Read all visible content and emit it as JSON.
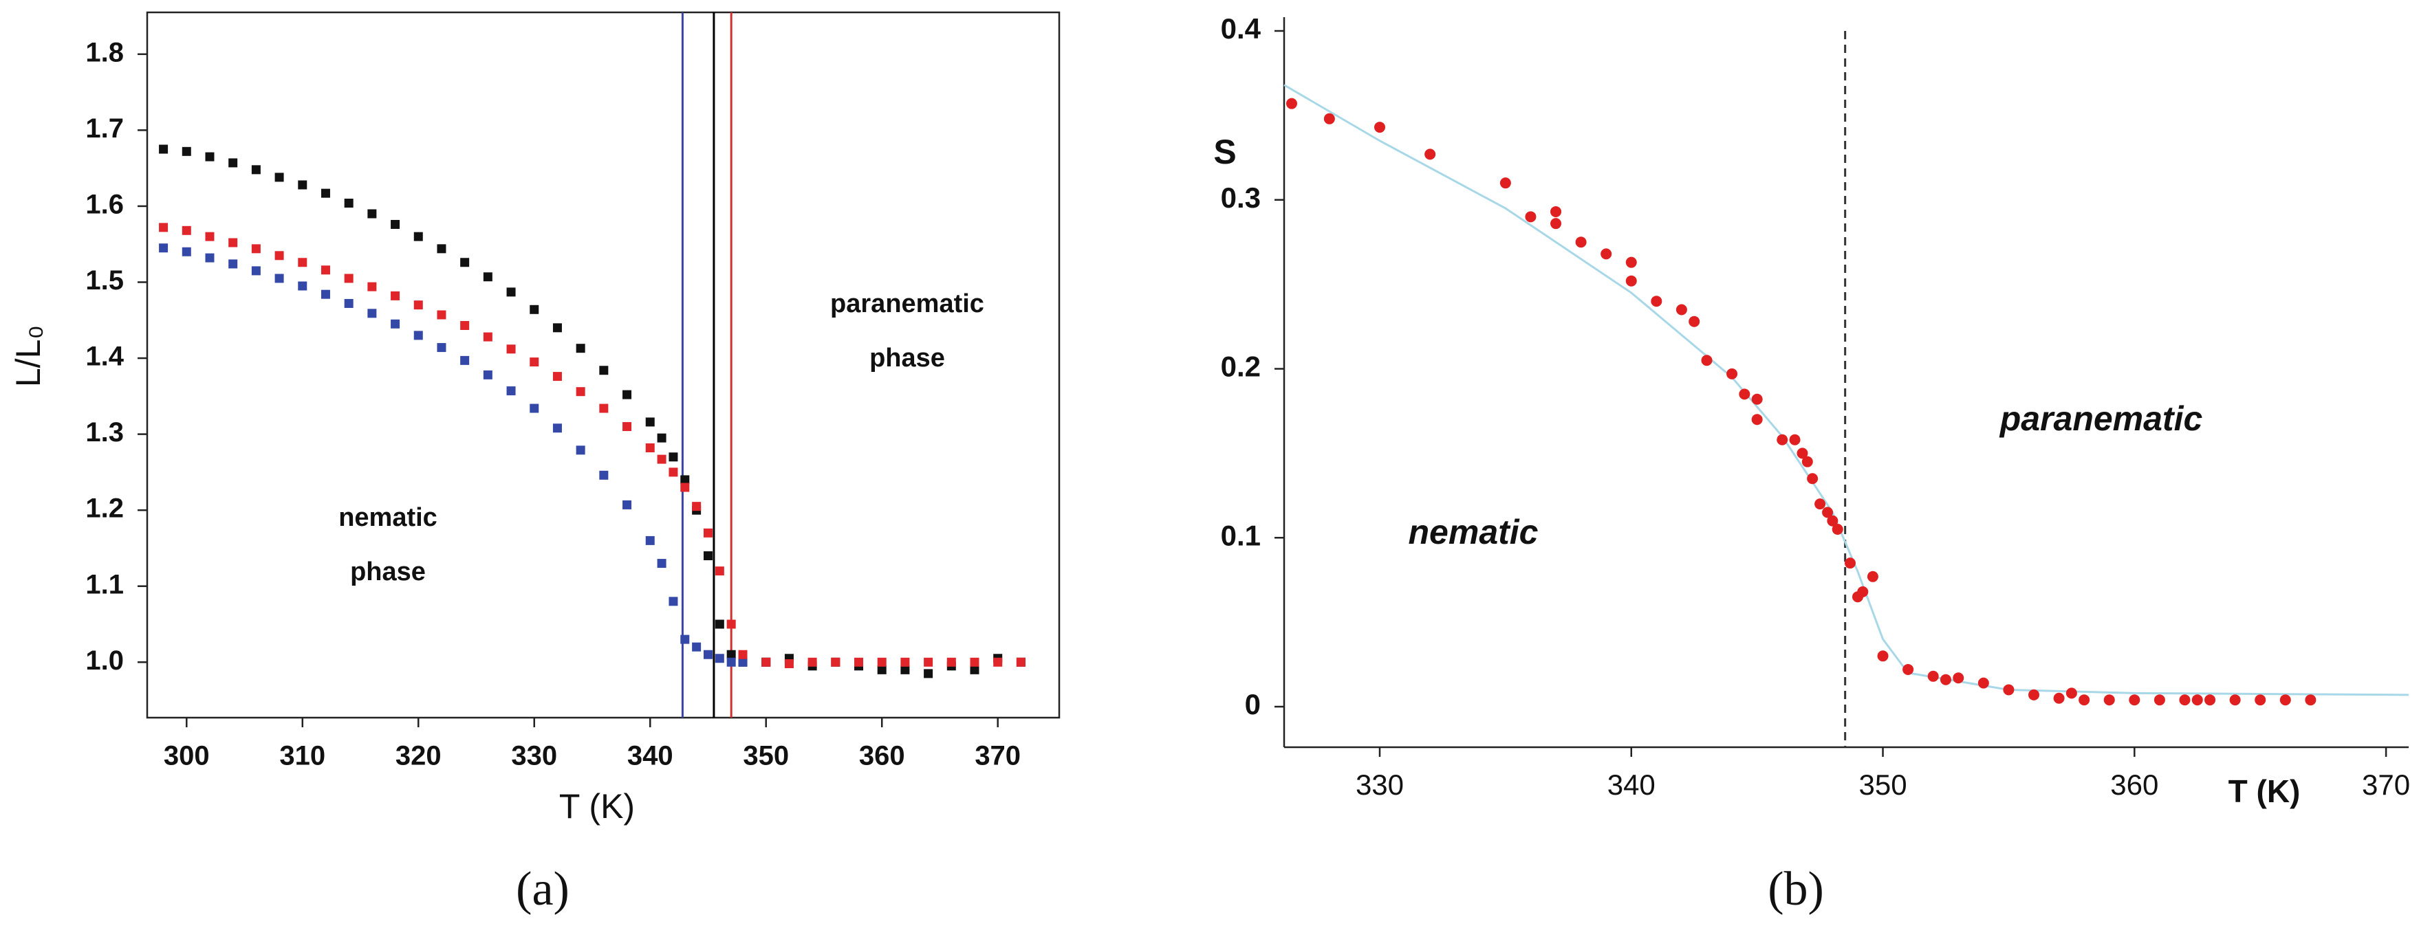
{
  "chart_data": [
    {
      "type": "scatter",
      "panel_label": "(a)",
      "xlabel": "T (K)",
      "ylabel": "L/L₀",
      "annotations": [
        "nematic",
        "phase",
        "paranematic",
        "phase"
      ],
      "xlim": [
        296.6,
        375.3
      ],
      "ylim": [
        0.927,
        1.855
      ],
      "xticks": [
        300,
        310,
        320,
        330,
        340,
        350,
        360,
        370
      ],
      "yticks": [
        {
          "value": 1,
          "label": "1.0"
        },
        1.1,
        1.2,
        1.3,
        1.4,
        1.5,
        1.6,
        1.7,
        1.8
      ],
      "frame": true,
      "x": [
        298,
        300,
        302,
        304,
        306,
        308,
        310,
        312,
        314,
        316,
        318,
        320,
        322,
        324,
        326,
        328,
        330,
        332,
        334,
        336,
        338,
        340,
        341,
        342,
        343,
        344,
        345,
        346,
        347,
        348,
        350,
        352,
        354,
        356,
        358,
        360,
        362,
        364,
        366,
        368,
        370,
        372
      ],
      "series": [
        {
          "color": "#111111",
          "marker": "square",
          "values": [
            1.675,
            1.672,
            1.665,
            1.657,
            1.648,
            1.638,
            1.628,
            1.617,
            1.604,
            1.59,
            1.576,
            1.56,
            1.544,
            1.526,
            1.507,
            1.487,
            1.464,
            1.44,
            1.413,
            1.384,
            1.352,
            1.316,
            1.295,
            1.27,
            1.24,
            1.2,
            1.14,
            1.05,
            1.01,
            1.0,
            1.0,
            1.005,
            0.995,
            1.0,
            0.995,
            0.99,
            0.99,
            0.985,
            0.995,
            0.99,
            1.005,
            1.0
          ]
        },
        {
          "color": "#3448a8",
          "marker": "square",
          "values": [
            1.545,
            1.54,
            1.532,
            1.524,
            1.515,
            1.505,
            1.495,
            1.484,
            1.472,
            1.459,
            1.445,
            1.43,
            1.414,
            1.397,
            1.378,
            1.357,
            1.334,
            1.308,
            1.279,
            1.246,
            1.207,
            1.16,
            1.13,
            1.08,
            1.03,
            1.02,
            1.01,
            1.005,
            1.0,
            1.0,
            1.0,
            null,
            null,
            null,
            null,
            null,
            null,
            null,
            null,
            null,
            null,
            null
          ]
        },
        {
          "color": "#e0262b",
          "marker": "square",
          "values": [
            1.572,
            1.568,
            1.56,
            1.552,
            1.544,
            1.535,
            1.526,
            1.516,
            1.505,
            1.494,
            1.482,
            1.47,
            1.457,
            1.443,
            1.428,
            1.412,
            1.395,
            1.376,
            1.356,
            1.334,
            1.31,
            1.282,
            1.267,
            1.25,
            1.23,
            1.205,
            1.17,
            1.12,
            1.05,
            1.01,
            1.0,
            0.998,
            1.0,
            1.0,
            1.0,
            1.0,
            1.0,
            1.0,
            1.0,
            1.0,
            1.0,
            1.0
          ]
        }
      ],
      "vlines": [
        {
          "x": 342.8,
          "color": "#3b44a8"
        },
        {
          "x": 345.5,
          "color": "#000000"
        },
        {
          "x": 347,
          "color": "#d03030"
        }
      ]
    },
    {
      "type": "scatter",
      "panel_label": "(b)",
      "xlabel": "T (K)",
      "ylabel": "S",
      "annotations": [
        "nematic",
        "paranematic"
      ],
      "xlim": [
        326.2,
        370.9
      ],
      "ylim": [
        -0.024,
        0.4
      ],
      "xticks": [
        330,
        340,
        350,
        360,
        370
      ],
      "yticks": [
        0,
        0.1,
        0.2,
        0.3,
        0.4
      ],
      "frame": false,
      "series": [
        {
          "color": "#a8d8e8",
          "mode": "line",
          "x": [
            326.2,
            330,
            335,
            340,
            344,
            346,
            348,
            349,
            350,
            351,
            355,
            360,
            370.9
          ],
          "values": [
            0.368,
            0.335,
            0.295,
            0.245,
            0.195,
            0.16,
            0.115,
            0.08,
            0.04,
            0.02,
            0.01,
            0.008,
            0.007
          ]
        },
        {
          "color": "#e02020",
          "marker": "circle",
          "x": [
            326.5,
            328,
            330,
            332,
            335,
            336,
            337,
            337,
            338,
            339,
            340,
            340,
            341,
            342,
            342.5,
            343,
            344,
            344.5,
            345,
            345,
            346,
            346.5,
            346.8,
            347,
            347.2,
            347.5,
            347.8,
            348,
            348.2,
            348.7,
            349,
            349.2,
            349.6,
            350,
            351,
            352,
            352.5,
            353,
            354,
            355,
            356,
            357,
            357.5,
            358,
            359,
            360,
            361,
            362,
            362.5,
            363,
            364,
            365,
            366,
            367
          ],
          "values": [
            0.357,
            0.348,
            0.343,
            0.327,
            0.31,
            0.29,
            0.293,
            0.286,
            0.275,
            0.268,
            0.263,
            0.252,
            0.24,
            0.235,
            0.228,
            0.205,
            0.197,
            0.185,
            0.182,
            0.17,
            0.158,
            0.158,
            0.15,
            0.145,
            0.135,
            0.12,
            0.115,
            0.11,
            0.105,
            0.085,
            0.065,
            0.068,
            0.077,
            0.03,
            0.022,
            0.018,
            0.016,
            0.017,
            0.014,
            0.01,
            0.007,
            0.005,
            0.008,
            0.004,
            0.004,
            0.004,
            0.004,
            0.004,
            0.004,
            0.004,
            0.004,
            0.004,
            0.004,
            0.004
          ]
        }
      ],
      "vlines": [
        {
          "x": 348.5,
          "color": "#333333",
          "dashed": true
        }
      ]
    }
  ]
}
